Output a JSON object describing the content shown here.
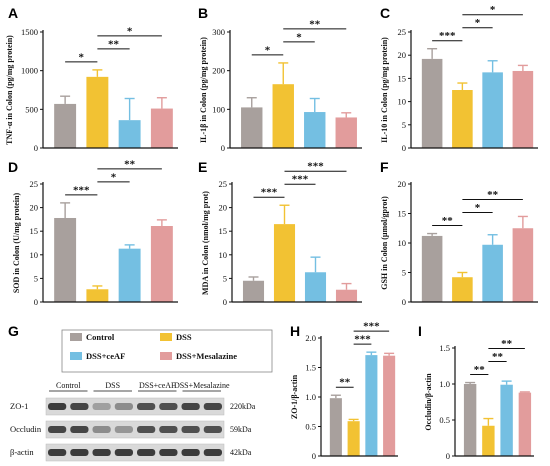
{
  "colors": {
    "Control": "#a8a09d",
    "DSS": "#f2c233",
    "DSS+ceAF": "#74bfe2",
    "DSS+Mesalazine": "#e29c9c",
    "axis": "#111111"
  },
  "chart_data": [
    {
      "panel": "A",
      "type": "bar",
      "ylabel": "TNF-α in Colon (pg/mg protein)",
      "categories": [
        "Control",
        "DSS",
        "DSS+ceAF",
        "DSS+Mesalazine"
      ],
      "values": [
        570,
        920,
        360,
        510
      ],
      "errors": [
        100,
        90,
        280,
        140
      ],
      "ylim": [
        0,
        1500
      ],
      "yticks": [
        "0",
        "500",
        "1000",
        "1500"
      ],
      "significance": [
        {
          "from": 0,
          "to": 1,
          "label": "*"
        },
        {
          "from": 1,
          "to": 2,
          "label": "**"
        },
        {
          "from": 1,
          "to": 3,
          "label": "*"
        }
      ]
    },
    {
      "panel": "B",
      "type": "bar",
      "ylabel": "IL-1β in Colon (pg/mg protein)",
      "categories": [
        "Control",
        "DSS",
        "DSS+ceAF",
        "DSS+Mesalazine"
      ],
      "values": [
        105,
        165,
        93,
        79
      ],
      "errors": [
        25,
        55,
        35,
        12
      ],
      "ylim": [
        0,
        300
      ],
      "yticks": [
        "0",
        "100",
        "200",
        "300"
      ],
      "significance": [
        {
          "from": 0,
          "to": 1,
          "label": "*"
        },
        {
          "from": 1,
          "to": 2,
          "label": "*"
        },
        {
          "from": 1,
          "to": 3,
          "label": "**"
        }
      ]
    },
    {
      "panel": "C",
      "type": "bar",
      "ylabel": "IL-10 in Colon (pg/mg protein)",
      "categories": [
        "Control",
        "DSS",
        "DSS+ceAF",
        "DSS+Mesalazine"
      ],
      "values": [
        19.2,
        12.5,
        16.3,
        16.6
      ],
      "errors": [
        2.2,
        1.5,
        2.5,
        1.2
      ],
      "ylim": [
        0,
        25
      ],
      "yticks": [
        "0",
        "5",
        "10",
        "15",
        "20",
        "25"
      ],
      "significance": [
        {
          "from": 0,
          "to": 1,
          "label": "***"
        },
        {
          "from": 1,
          "to": 2,
          "label": "*"
        },
        {
          "from": 1,
          "to": 3,
          "label": "*"
        }
      ]
    },
    {
      "panel": "D",
      "type": "bar",
      "ylabel": "SOD in Colon (U/mg protein)",
      "categories": [
        "Control",
        "DSS",
        "DSS+ceAF",
        "DSS+Mesalazine"
      ],
      "values": [
        17.8,
        2.7,
        11.3,
        16.1
      ],
      "errors": [
        3.2,
        0.7,
        0.8,
        1.3
      ],
      "ylim": [
        0,
        25
      ],
      "yticks": [
        "0",
        "5",
        "10",
        "15",
        "20",
        "25"
      ],
      "significance": [
        {
          "from": 0,
          "to": 1,
          "label": "***"
        },
        {
          "from": 1,
          "to": 2,
          "label": "*"
        },
        {
          "from": 1,
          "to": 3,
          "label": "**"
        }
      ]
    },
    {
      "panel": "E",
      "type": "bar",
      "ylabel": "MDA in Colon (nmol/mg prot)",
      "categories": [
        "Control",
        "DSS",
        "DSS+ceAF",
        "DSS+Mesalazine"
      ],
      "values": [
        4.5,
        16.5,
        6.3,
        2.6
      ],
      "errors": [
        0.8,
        4.0,
        3.2,
        1.3
      ],
      "ylim": [
        0,
        25
      ],
      "yticks": [
        "0",
        "5",
        "10",
        "15",
        "20",
        "25"
      ],
      "significance": [
        {
          "from": 0,
          "to": 1,
          "label": "***"
        },
        {
          "from": 1,
          "to": 2,
          "label": "***"
        },
        {
          "from": 1,
          "to": 3,
          "label": "***"
        }
      ]
    },
    {
      "panel": "F",
      "type": "bar",
      "ylabel": "GSH in Colon (μmol/gprot)",
      "categories": [
        "Control",
        "DSS",
        "DSS+ceAF",
        "DSS+Mesalazine"
      ],
      "values": [
        11.2,
        4.2,
        9.7,
        12.5
      ],
      "errors": [
        0.4,
        0.8,
        1.7,
        2.0
      ],
      "ylim": [
        0,
        20
      ],
      "yticks": [
        "0",
        "5",
        "10",
        "15",
        "20"
      ],
      "significance": [
        {
          "from": 0,
          "to": 1,
          "label": "**"
        },
        {
          "from": 1,
          "to": 2,
          "label": "*"
        },
        {
          "from": 1,
          "to": 3,
          "label": "**"
        }
      ]
    },
    {
      "panel": "H",
      "type": "bar",
      "ylabel": "ZO-1/β-actin",
      "categories": [
        "Control",
        "DSS",
        "DSS+ceAF",
        "DSS+Mesalazine"
      ],
      "values": [
        0.98,
        0.59,
        1.71,
        1.7
      ],
      "errors": [
        0.05,
        0.03,
        0.05,
        0.04
      ],
      "ylim": [
        0,
        2.0
      ],
      "yticks": [
        "0",
        "0.5",
        "1.0",
        "1.5",
        "2.0"
      ],
      "significance": [
        {
          "from": 0,
          "to": 1,
          "label": "**"
        },
        {
          "from": 1,
          "to": 2,
          "label": "***"
        },
        {
          "from": 1,
          "to": 3,
          "label": "***"
        }
      ]
    },
    {
      "panel": "I",
      "type": "bar",
      "ylabel": "Occludin/β-actin",
      "categories": [
        "Control",
        "DSS",
        "DSS+ceAF",
        "DSS+Mesalazine"
      ],
      "values": [
        1.0,
        0.42,
        0.99,
        0.88
      ],
      "errors": [
        0.02,
        0.1,
        0.05,
        0.01
      ],
      "ylim": [
        0,
        1.5
      ],
      "yticks": [
        "0",
        "0.5",
        "1.0",
        "1.5"
      ],
      "significance": [
        {
          "from": 0,
          "to": 1,
          "label": "**"
        },
        {
          "from": 1,
          "to": 2,
          "label": "**"
        },
        {
          "from": 1,
          "to": 3,
          "label": "**"
        }
      ]
    }
  ],
  "western_blot": {
    "panel": "G",
    "legend": [
      "Control",
      "DSS",
      "DSS+ceAF",
      "DSS+Mesalazine"
    ],
    "groups": [
      "Control",
      "DSS",
      "DSS+ceAF",
      "DSS+Mesalazine"
    ],
    "rows": [
      {
        "protein": "ZO-1",
        "mw": "220kDa",
        "intensity": [
          0.85,
          0.8,
          0.35,
          0.45,
          0.75,
          0.75,
          0.8,
          0.8
        ]
      },
      {
        "protein": "Occludin",
        "mw": "59kDa",
        "intensity": [
          0.8,
          0.8,
          0.45,
          0.4,
          0.75,
          0.75,
          0.75,
          0.75
        ]
      },
      {
        "protein": "β-actin",
        "mw": "42kDa",
        "intensity": [
          0.85,
          0.85,
          0.85,
          0.85,
          0.85,
          0.85,
          0.85,
          0.85
        ]
      }
    ]
  }
}
